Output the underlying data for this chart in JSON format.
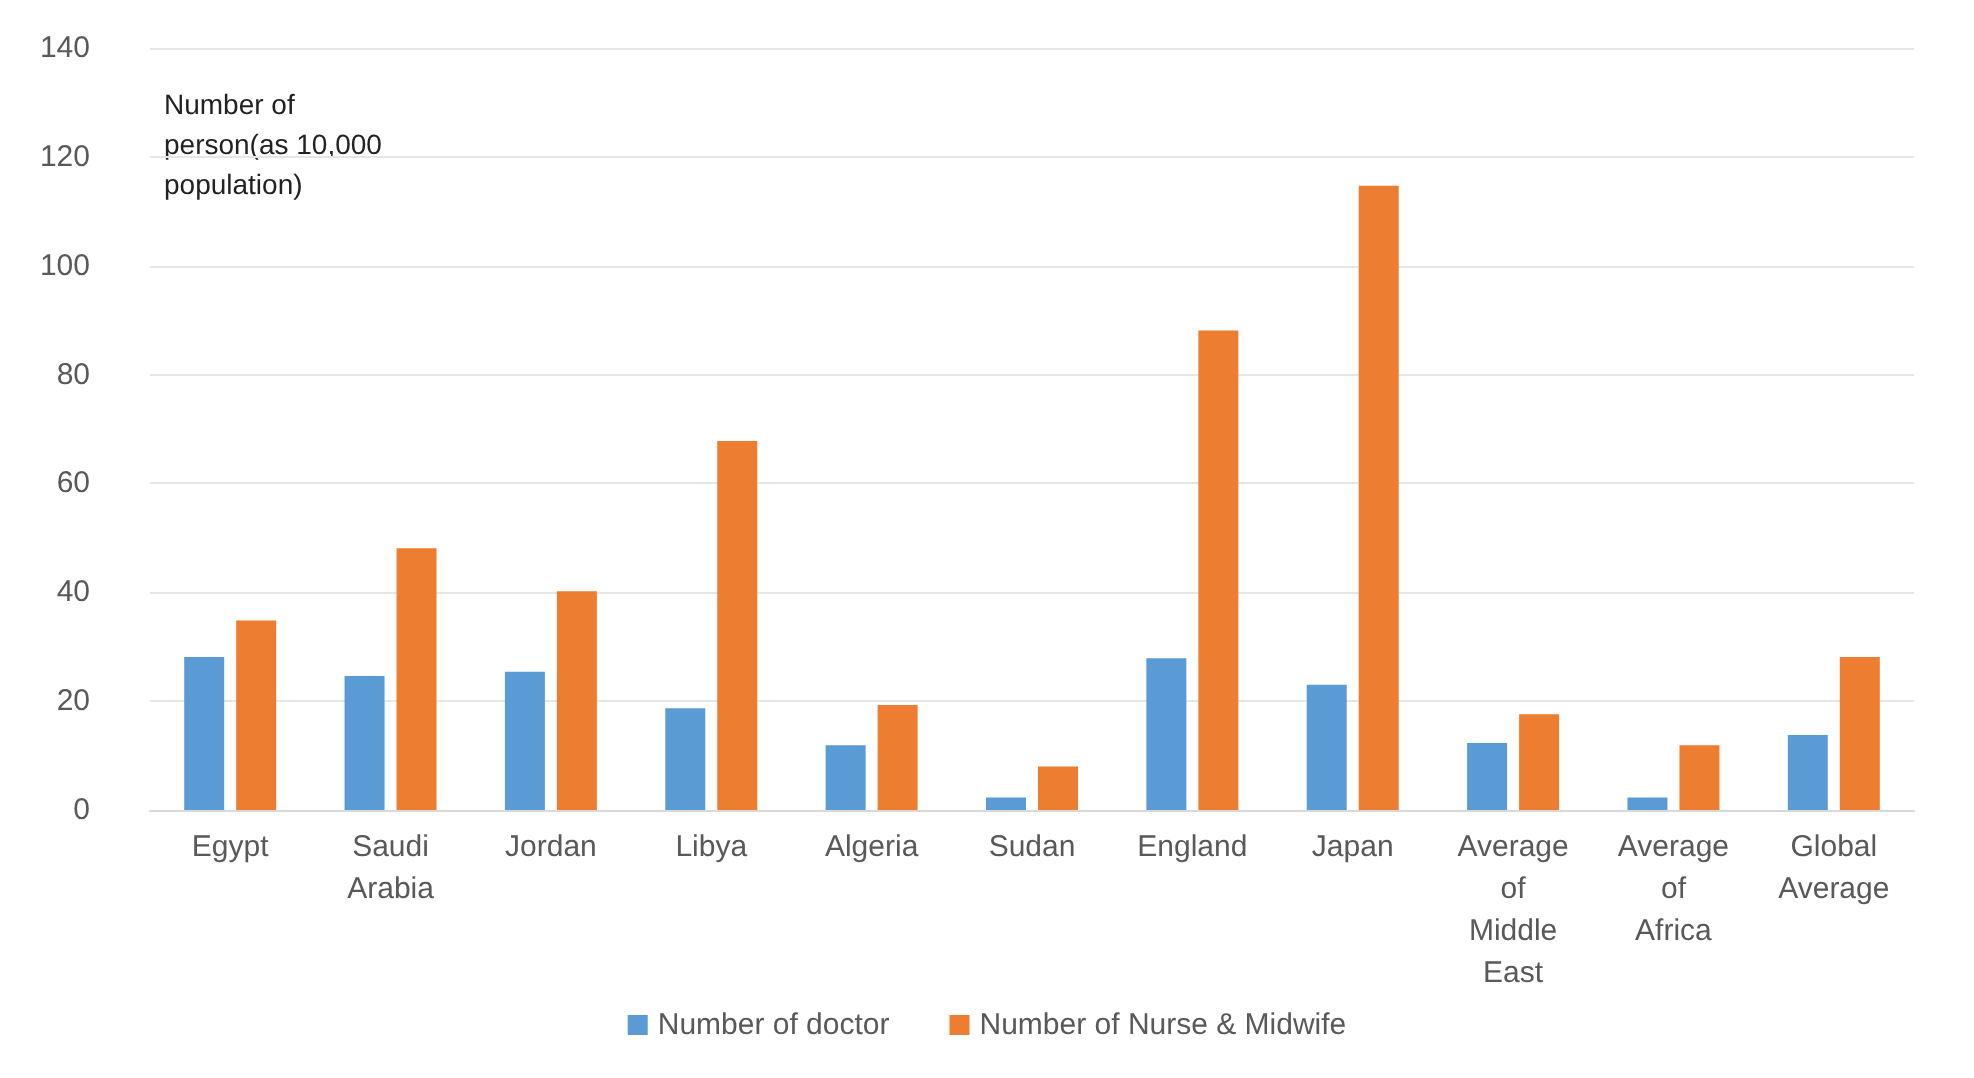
{
  "chart_data": {
    "type": "bar",
    "ylabel": "Number of person(as 10,000 population)",
    "categories": [
      "Egypt",
      "Saudi Arabia",
      "Jordan",
      "Libya",
      "Algeria",
      "Sudan",
      "England",
      "Japan",
      "Average of Middle East",
      "Average of Africa",
      "Global Average"
    ],
    "series": [
      {
        "name": "Number of doctor",
        "color": "#5b9bd5",
        "values": [
          28.1,
          24.6,
          25.4,
          18.7,
          11.9,
          2.3,
          27.9,
          23.0,
          12.3,
          2.3,
          13.8
        ]
      },
      {
        "name": "Number of Nurse & Midwife",
        "color": "#ed7d31",
        "values": [
          34.8,
          48.1,
          40.2,
          67.8,
          19.3,
          8.0,
          88.1,
          114.7,
          17.6,
          11.9,
          28.1
        ]
      }
    ],
    "ylim": [
      0,
      140
    ],
    "yticks": [
      0,
      20,
      40,
      60,
      80,
      100,
      120,
      140
    ],
    "grid": "y",
    "legend": "bottom"
  }
}
